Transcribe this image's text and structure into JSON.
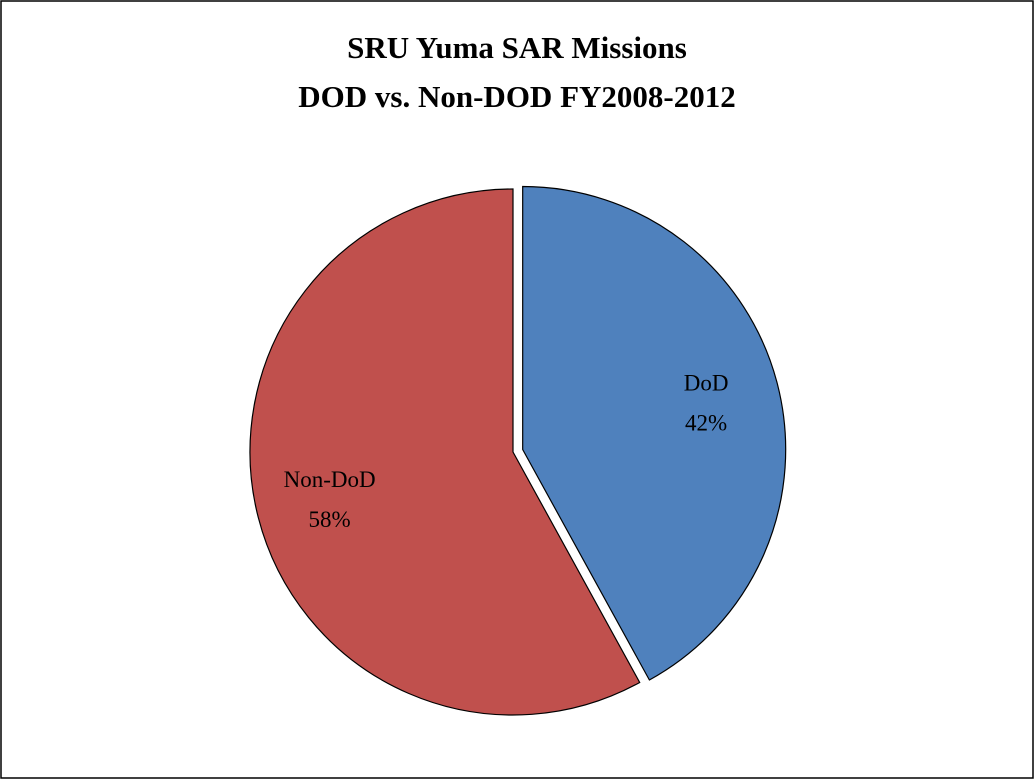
{
  "chart_data": {
    "type": "pie",
    "title": "SRU Yuma SAR Missions",
    "subtitle": "DOD vs. Non-DOD FY2008-2012",
    "categories": [
      "DoD",
      "Non-DoD"
    ],
    "values": [
      42,
      58
    ],
    "value_labels": [
      "42%",
      "58%"
    ],
    "colors": [
      "#4f81bd",
      "#c0504d"
    ],
    "exploded": [
      true,
      false
    ]
  }
}
